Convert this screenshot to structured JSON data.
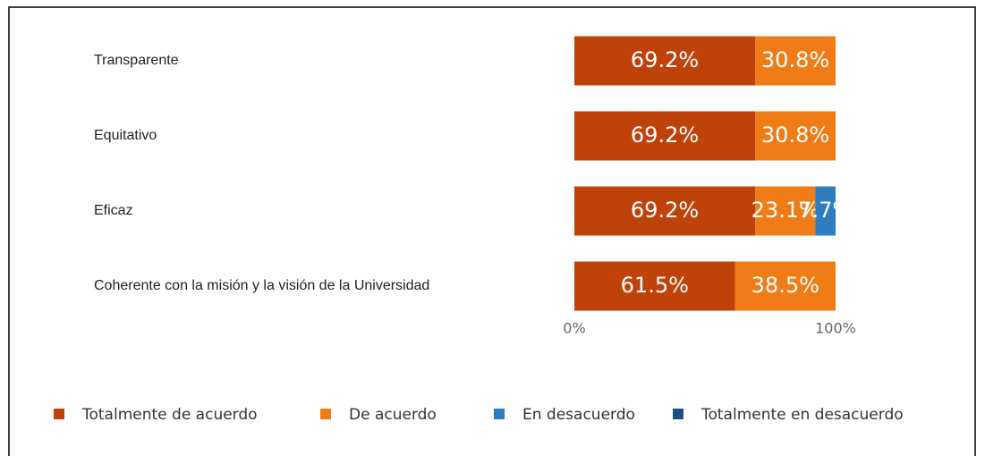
{
  "chart_data": {
    "type": "stacked-barh",
    "categories": [
      "Transparente",
      "Equitativo",
      "Eficaz",
      "Coherente con la misión y la visión de la Universidad"
    ],
    "series": [
      {
        "name": "Totalmente de acuerdo",
        "color": "#c0420b",
        "values": [
          69.2,
          69.2,
          69.2,
          61.5
        ],
        "value_labels": [
          "69.2%",
          "69.2%",
          "69.2%",
          "61.5%"
        ]
      },
      {
        "name": "De acuerdo",
        "color": "#f07c17",
        "values": [
          30.8,
          30.8,
          23.1,
          38.5
        ],
        "value_labels": [
          "30.8%",
          "30.8%",
          "23.1%",
          "38.5%"
        ]
      },
      {
        "name": "En desacuerdo",
        "color": "#2e7dc0",
        "values": [
          null,
          null,
          7.7,
          null
        ],
        "value_labels": [
          null,
          null,
          "7.7%",
          null
        ]
      },
      {
        "name": "Totalmente en desacuerdo",
        "color": "#1d4f7e",
        "values": [
          null,
          null,
          null,
          null
        ],
        "value_labels": [
          null,
          null,
          null,
          null
        ]
      }
    ],
    "xlim": [
      0,
      100
    ],
    "xticks": [
      {
        "value": 0,
        "label": "0%"
      },
      {
        "value": 100,
        "label": "100%"
      }
    ]
  }
}
